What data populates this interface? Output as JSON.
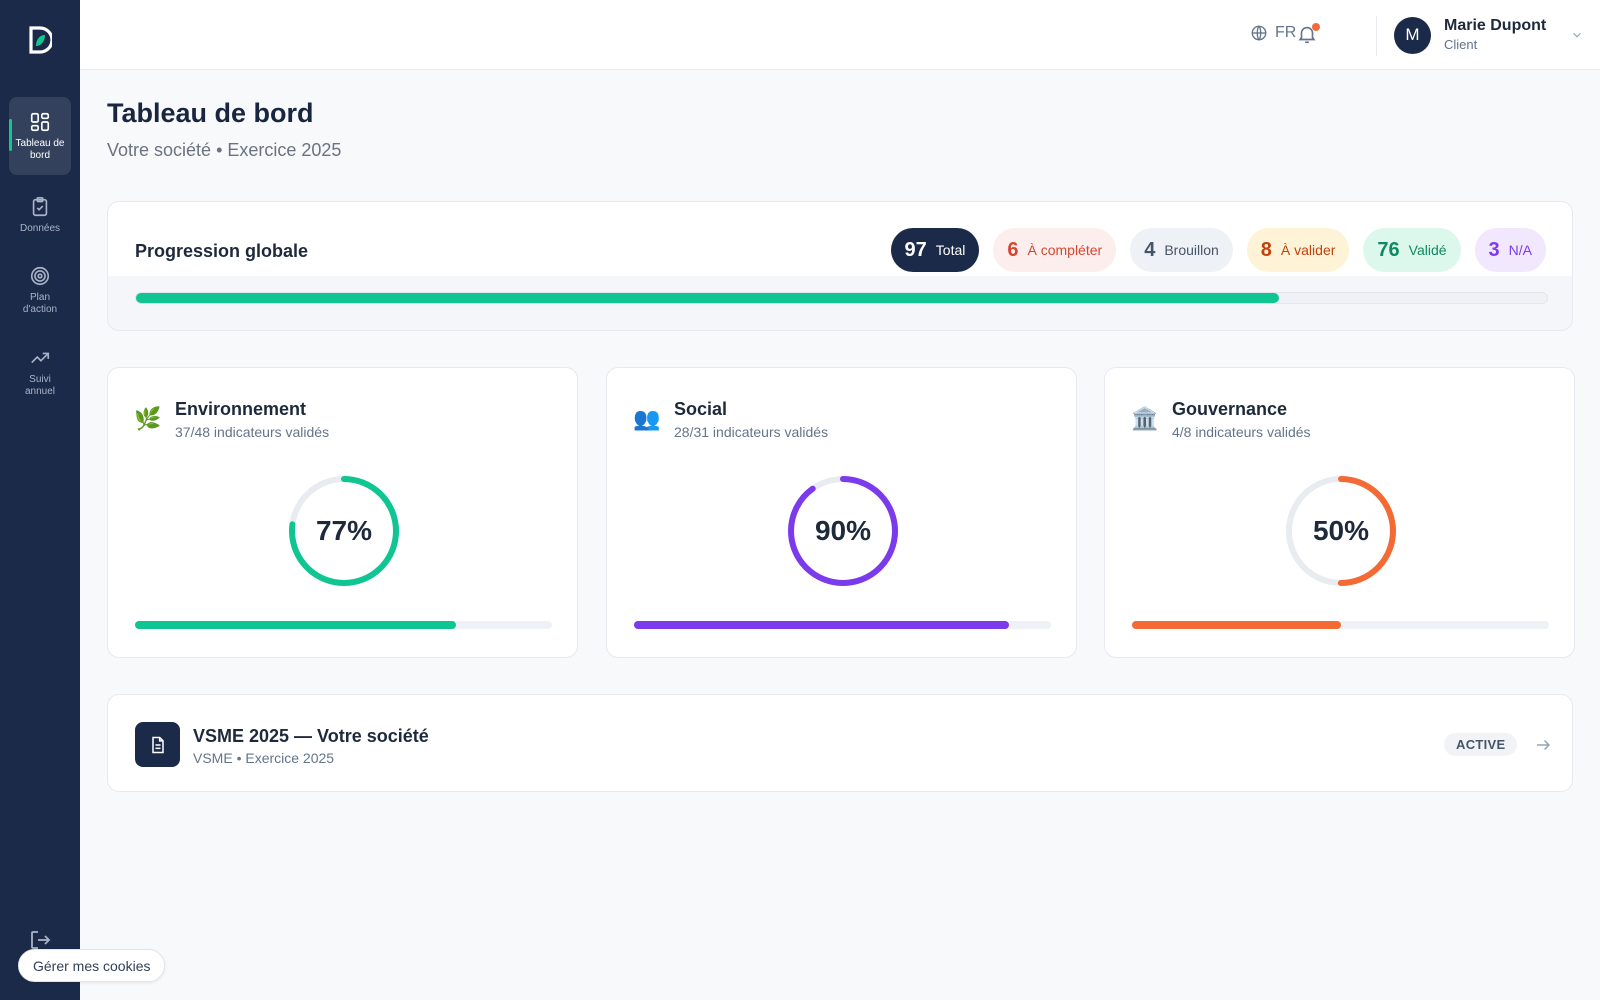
{
  "sidebar": {
    "items": [
      {
        "label": "Tableau de bord",
        "icon": "dashboard-grid-icon",
        "active": true
      },
      {
        "label": "Données",
        "icon": "clipboard-check-icon",
        "active": false
      },
      {
        "label": "Plan d'action",
        "icon": "target-icon",
        "active": false
      },
      {
        "label": "Suivi annuel",
        "icon": "trending-up-icon",
        "active": false
      }
    ],
    "logout_label": "Déconnexion"
  },
  "header": {
    "language": "FR",
    "user": {
      "initial": "M",
      "name": "Marie Dupont",
      "role": "Client"
    }
  },
  "page": {
    "title": "Tableau de bord",
    "subtitle": "Votre société • Exercice 2025"
  },
  "global_progress": {
    "title": "Progression globale",
    "percent": 81,
    "stats": [
      {
        "value": "97",
        "label": "Total",
        "bg": "#1c2a4a",
        "color": "#ffffff"
      },
      {
        "value": "6",
        "label": "À compléter",
        "bg": "#fdeeee",
        "color": "#d6472f"
      },
      {
        "value": "4",
        "label": "Brouillon",
        "bg": "#eef1f5",
        "color": "#475569"
      },
      {
        "value": "8",
        "label": "À valider",
        "bg": "#fef3d6",
        "color": "#c2410c"
      },
      {
        "value": "76",
        "label": "Validé",
        "bg": "#dcf7ec",
        "color": "#0f8a63"
      },
      {
        "value": "3",
        "label": "N/A",
        "bg": "#f1e8fd",
        "color": "#7e3af2"
      }
    ]
  },
  "pillars": [
    {
      "name": "Environnement",
      "icon": "leaf-icon",
      "glyph": "🌿",
      "count": "37/48 indicateurs validés",
      "percent_label": "77%",
      "percent": 77,
      "color": "#0fc693"
    },
    {
      "name": "Social",
      "icon": "people-icon",
      "glyph": "👥",
      "count": "28/31 indicateurs validés",
      "percent_label": "90%",
      "percent": 90,
      "color": "#7c3aed"
    },
    {
      "name": "Gouvernance",
      "icon": "institution-icon",
      "glyph": "🏛️",
      "count": "4/8 indicateurs validés",
      "percent_label": "50%",
      "percent": 50,
      "color": "#f46a35"
    }
  ],
  "report": {
    "title": "VSME 2025 — Votre société",
    "subtitle": "VSME • Exercice 2025",
    "status": "ACTIVE"
  },
  "cookies": {
    "label": "Gérer mes cookies"
  }
}
